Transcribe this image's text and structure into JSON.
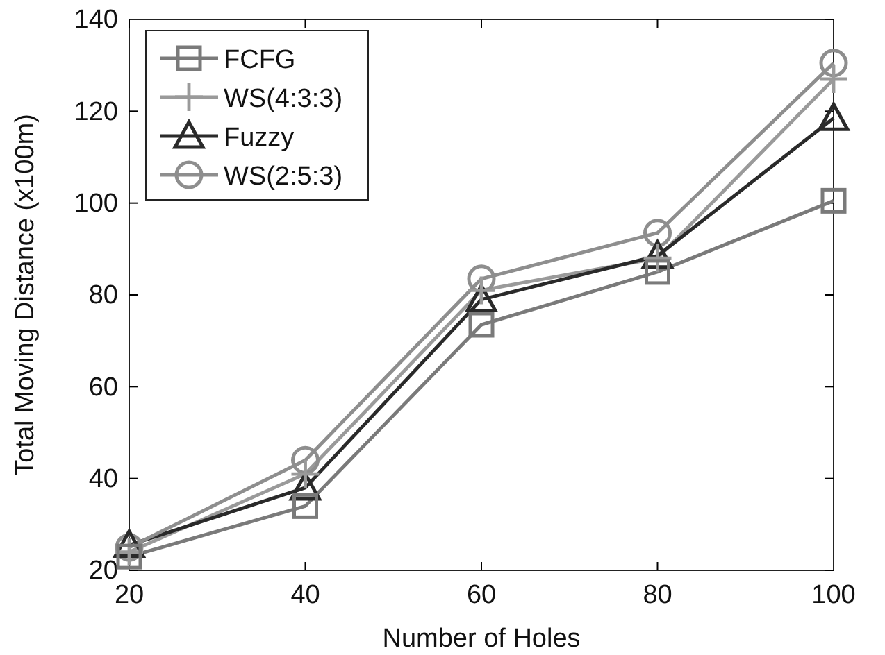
{
  "chart_data": {
    "type": "line",
    "xlabel": "Number of Holes",
    "ylabel": "Total Moving Distance (x100m)",
    "x": [
      20,
      40,
      60,
      80,
      100
    ],
    "xlim": [
      20,
      100
    ],
    "xticks": [
      20,
      40,
      60,
      80,
      100
    ],
    "ylim": [
      20,
      140
    ],
    "yticks": [
      20,
      40,
      60,
      80,
      100,
      120,
      140
    ],
    "grid": false,
    "legend": "top left",
    "line_style": "solid",
    "series": [
      {
        "name": "FCFG",
        "color": "#7a7a7a",
        "marker": "square",
        "values": [
          23,
          34,
          73.5,
          85,
          100.5
        ]
      },
      {
        "name": "WS(4:3:3)",
        "color": "#9a9a9a",
        "marker": "cross",
        "values": [
          24,
          41,
          81,
          88,
          127
        ]
      },
      {
        "name": "Fuzzy",
        "color": "#2a2a2a",
        "marker": "triangle",
        "values": [
          25.5,
          38,
          79,
          88.5,
          118.5
        ]
      },
      {
        "name": "WS(2:5:3)",
        "color": "#8e8e8e",
        "marker": "circle",
        "values": [
          25,
          44,
          83.5,
          93.5,
          130.5
        ]
      }
    ]
  }
}
